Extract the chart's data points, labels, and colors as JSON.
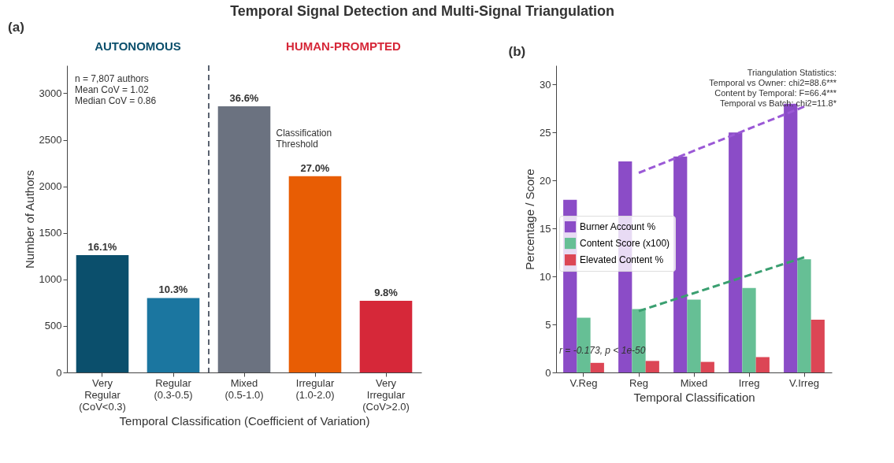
{
  "chart_data": [
    {
      "type": "bar",
      "title": "(a)",
      "categories": [
        "Very Regular (CoV<0.3)",
        "Regular (0.3-0.5)",
        "Mixed (0.5-1.0)",
        "Irregular (1.0-2.0)",
        "Very Irregular (CoV>2.0)"
      ],
      "values": [
        1260,
        800,
        2860,
        2110,
        770
      ],
      "colors": [
        "#0b4f6c",
        "#1b76a0",
        "#6b7280",
        "#e85d04",
        "#d62839"
      ],
      "xlabel": "Temporal Classification (Coefficient of Variation)",
      "ylabel": "Number of Authors",
      "ylim": [
        0,
        3300
      ],
      "yticks": [
        0,
        500,
        1000,
        1500,
        2000,
        2500,
        3000
      ],
      "annotations": [
        "Temporal Signal Detection and Multi-Signal Triangulation",
        "AUTONOMOUS",
        "HUMAN-PROMPTED",
        "n = 7,807 authors\nMean CoV = 1.02\nMedian CoV = 0.86",
        "Classification Threshold",
        {
          "text": "16.1%",
          "x": "Very Regular (CoV<0.3)",
          "y": 1260
        },
        {
          "text": "10.3%",
          "x": "Regular (0.3-0.5)",
          "y": 800
        },
        {
          "text": "36.6%",
          "x": "Mixed (0.5-1.0)",
          "y": 2860
        },
        {
          "text": "27.0%",
          "x": "Irregular (1.0-2.0)",
          "y": 2110
        },
        {
          "text": "9.8%",
          "x": "Very Irregular (CoV>2.0)",
          "y": 770
        }
      ]
    },
    {
      "type": "bar",
      "title": "(b)",
      "categories": [
        "V.Reg",
        "Reg",
        "Mixed",
        "Irreg",
        "V.Irreg"
      ],
      "series": [
        {
          "name": "Burner Account %",
          "color": "#8b4cc7",
          "values": [
            18.0,
            22.0,
            22.5,
            25.0,
            28.0
          ]
        },
        {
          "name": "Content Score (x100)",
          "color": "#66bf95",
          "values": [
            5.7,
            6.6,
            7.6,
            8.8,
            11.8
          ]
        },
        {
          "name": "Elevated Content %",
          "color": "#dc4655",
          "values": [
            1.0,
            1.2,
            1.1,
            1.6,
            5.5
          ]
        },
        {
          "type": "line",
          "color": "#9b59d6",
          "line_style": "dashed",
          "x": [
            "Reg",
            "V.Irreg"
          ],
          "values": [
            20.8,
            27.7
          ]
        },
        {
          "type": "line",
          "color": "#3a9f70",
          "line_style": "dashed",
          "x": [
            "Reg",
            "V.Irreg"
          ],
          "values": [
            6.4,
            12.0
          ]
        }
      ],
      "xlabel": "Temporal Classification",
      "ylabel": "Percentage / Score",
      "ylim": [
        0,
        32
      ],
      "yticks": [
        0,
        5,
        10,
        15,
        20,
        25,
        30
      ],
      "legend": "left",
      "annotations": [
        "Triangulation Statistics:\nTemporal vs Owner: chi2=88.6***\nContent by Temporal: F=66.4***\nTemporal vs Batch: chi2=11.8*",
        "r = -0.173, p < 1e-50"
      ]
    }
  ]
}
